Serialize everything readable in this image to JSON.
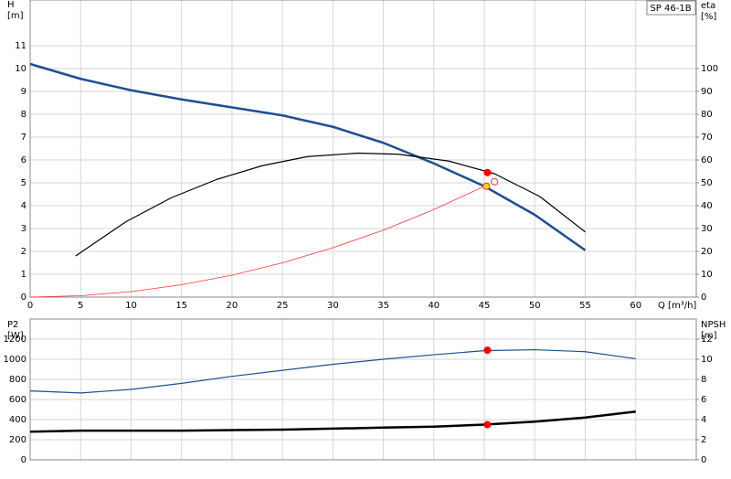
{
  "chart_data": [
    {
      "type": "line",
      "legend": "SP 46-1B",
      "y_label": "H",
      "y_unit": "[m]",
      "y2_label": "eta",
      "y2_unit": "[%]",
      "x_label": "Q [m³/h]",
      "xlim": [
        0,
        66
      ],
      "xticks": [
        0,
        5,
        10,
        15,
        20,
        25,
        30,
        35,
        40,
        45,
        50,
        55,
        60
      ],
      "ylim": [
        0,
        13
      ],
      "yticks": [
        0,
        1,
        2,
        3,
        4,
        5,
        6,
        7,
        8,
        9,
        10,
        11
      ],
      "y2lim": [
        0,
        130
      ],
      "y2ticks": [
        0,
        10,
        20,
        30,
        40,
        50,
        60,
        70,
        80,
        90,
        100
      ],
      "grid": true,
      "series": [
        {
          "color": "#1d4f91",
          "width": 2.5,
          "x": [
            0,
            5,
            10,
            15,
            20,
            25,
            30,
            35,
            40,
            45,
            50,
            55
          ],
          "values": [
            10.2,
            9.55,
            9.05,
            8.65,
            8.3,
            7.95,
            7.45,
            6.75,
            5.85,
            4.85,
            3.6,
            2.05
          ]
        },
        {
          "color": "#000000",
          "width": 1.2,
          "axis": "y2",
          "x": [
            4.5,
            9.5,
            14,
            18.5,
            23,
            27.5,
            32.5,
            36.5,
            41.5,
            46,
            50.5,
            55
          ],
          "values": [
            18,
            33,
            43.5,
            51.5,
            57.5,
            61.5,
            63,
            62.5,
            59.5,
            54,
            44,
            28.5
          ]
        },
        {
          "color": "#ff3333",
          "width": 0.8,
          "x": [
            0,
            5,
            10,
            15,
            20,
            25,
            30,
            35,
            40,
            45
          ],
          "values": [
            0,
            0.06,
            0.24,
            0.54,
            0.96,
            1.5,
            2.16,
            2.93,
            3.83,
            4.85
          ]
        }
      ],
      "points": [
        {
          "x": 45.3,
          "y": 54.5,
          "axis": "y2",
          "fill": "#ff0000",
          "stroke": "#ff0000"
        },
        {
          "x": 45.2,
          "y": 4.85,
          "fill": "#ffd700",
          "stroke": "#ff3333"
        },
        {
          "x": 46,
          "y": 5.05,
          "fill": "#ffffff",
          "stroke": "#ff3333"
        }
      ]
    },
    {
      "type": "line",
      "y_label": "P2",
      "y_unit": "[W]",
      "y2_label": "NPSH",
      "y2_unit": "[m]",
      "xlim": [
        0,
        66
      ],
      "xticks": [
        0,
        5,
        10,
        15,
        20,
        25,
        30,
        35,
        40,
        45,
        50,
        55,
        60
      ],
      "ylim": [
        0,
        1400
      ],
      "yticks": [
        0,
        200,
        400,
        600,
        800,
        1000,
        1200
      ],
      "y2lim": [
        0,
        14
      ],
      "y2ticks": [
        0,
        2,
        4,
        6,
        8,
        10,
        12
      ],
      "grid": true,
      "series": [
        {
          "color": "#1d4f91",
          "width": 1.2,
          "x": [
            0,
            5,
            10,
            15,
            20,
            25,
            30,
            35,
            40,
            45,
            50,
            55,
            60
          ],
          "values": [
            685,
            665,
            700,
            760,
            830,
            890,
            950,
            1000,
            1045,
            1085,
            1095,
            1075,
            1005
          ]
        },
        {
          "color": "#000000",
          "width": 2.5,
          "axis": "y2",
          "x": [
            0,
            5,
            10,
            15,
            20,
            25,
            30,
            35,
            40,
            45,
            50,
            55,
            60
          ],
          "values": [
            2.8,
            2.9,
            2.9,
            2.9,
            2.95,
            3.0,
            3.1,
            3.2,
            3.3,
            3.5,
            3.8,
            4.2,
            4.8
          ]
        }
      ],
      "points": [
        {
          "x": 45.3,
          "y": 1090,
          "fill": "#ff0000",
          "stroke": "#ff0000"
        },
        {
          "x": 45.3,
          "y": 3.5,
          "axis": "y2",
          "fill": "#ff0000",
          "stroke": "#ff0000"
        }
      ]
    }
  ]
}
